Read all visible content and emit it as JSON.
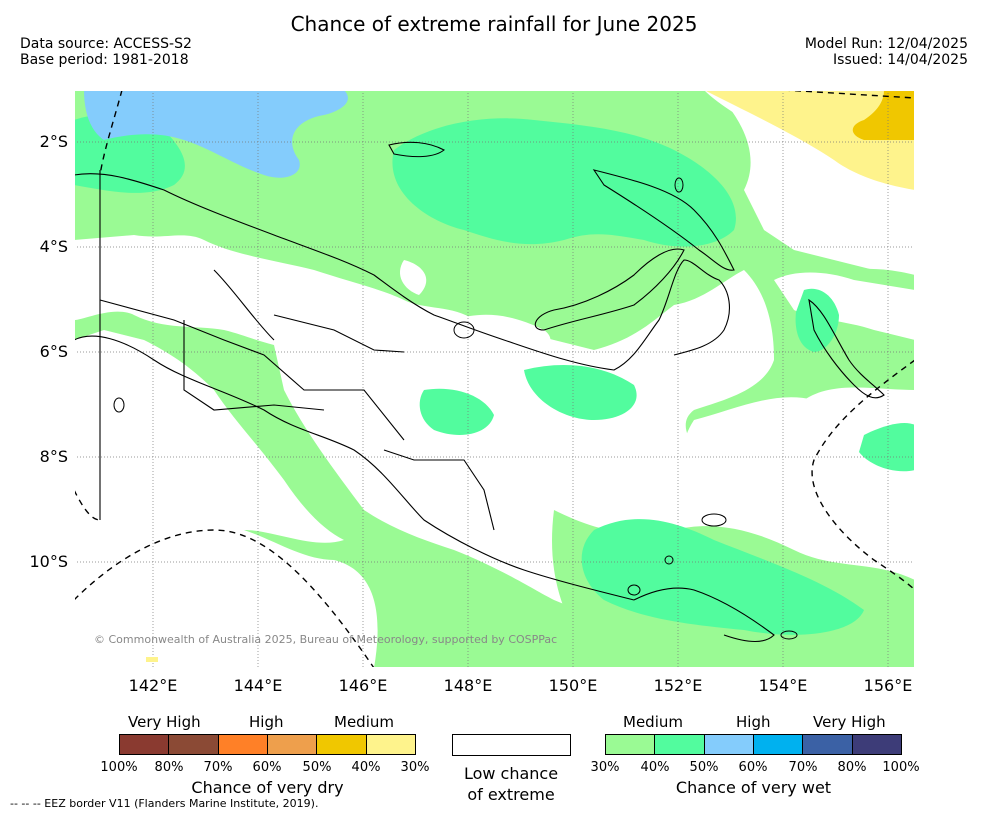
{
  "header": {
    "title": "Chance of extreme rainfall for June 2025",
    "data_source": "Data source: ACCESS-S2",
    "base_period": "Base period: 1981-2018",
    "model_run": "Model Run: 12/04/2025",
    "issued": "Issued: 14/04/2025"
  },
  "map": {
    "lat_ticks": [
      "2°S",
      "4°S",
      "6°S",
      "8°S",
      "10°S"
    ],
    "lon_ticks": [
      "142°E",
      "144°E",
      "146°E",
      "148°E",
      "150°E",
      "152°E",
      "154°E",
      "156°E"
    ],
    "copyright": "© Commonwealth of Australia 2025, Bureau of Meteorology, supported by COSPPac",
    "colors": {
      "wet_30_40": "#9afa94",
      "wet_40_50": "#52fc9e",
      "wet_50_60": "#84ccfc",
      "dry_30_40": "#fef38c",
      "dry_40_50": "#f0c700",
      "land_outline": "#000000"
    }
  },
  "legend": {
    "dry": {
      "categories": [
        "Very High",
        "High",
        "Medium"
      ],
      "colors": [
        "#8a3a30",
        "#8b4a35",
        "#ff8027",
        "#ee9f4c",
        "#f0c700",
        "#fef38c"
      ],
      "ticks": [
        "100%",
        "80%",
        "70%",
        "60%",
        "50%",
        "40%",
        "30%"
      ],
      "caption": "Chance of very dry"
    },
    "low": {
      "caption_line1": "Low chance",
      "caption_line2": "of extreme"
    },
    "wet": {
      "categories": [
        "Medium",
        "High",
        "Very High"
      ],
      "colors": [
        "#9afa94",
        "#52fc9e",
        "#84ccfc",
        "#00b1ef",
        "#3b61a5",
        "#3d3c78"
      ],
      "ticks": [
        "30%",
        "40%",
        "50%",
        "60%",
        "70%",
        "80%",
        "100%"
      ],
      "caption": "Chance of very wet"
    }
  },
  "footer": {
    "eez_note": "--  --  -- EEZ border V11 (Flanders Marine Institute, 2019)."
  }
}
